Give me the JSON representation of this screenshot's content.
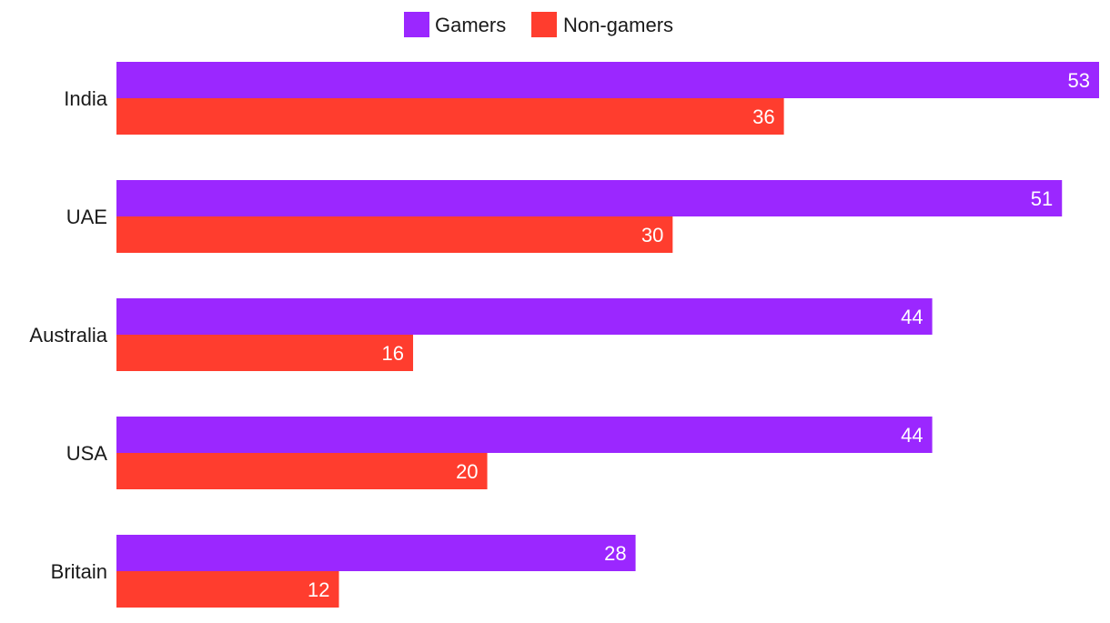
{
  "chart_data": {
    "type": "bar",
    "orientation": "horizontal",
    "categories": [
      "India",
      "UAE",
      "Australia",
      "USA",
      "Britain"
    ],
    "series": [
      {
        "name": "Gamers",
        "color": "#9b27ff",
        "values": [
          53,
          51,
          44,
          44,
          28
        ]
      },
      {
        "name": "Non-gamers",
        "color": "#ff3d2e",
        "values": [
          36,
          30,
          16,
          20,
          12
        ]
      }
    ],
    "title": "",
    "xlabel": "",
    "ylabel": "",
    "xlim": [
      0,
      53
    ],
    "grid": false,
    "legend_position": "top-center",
    "data_labels": "inside-end"
  }
}
